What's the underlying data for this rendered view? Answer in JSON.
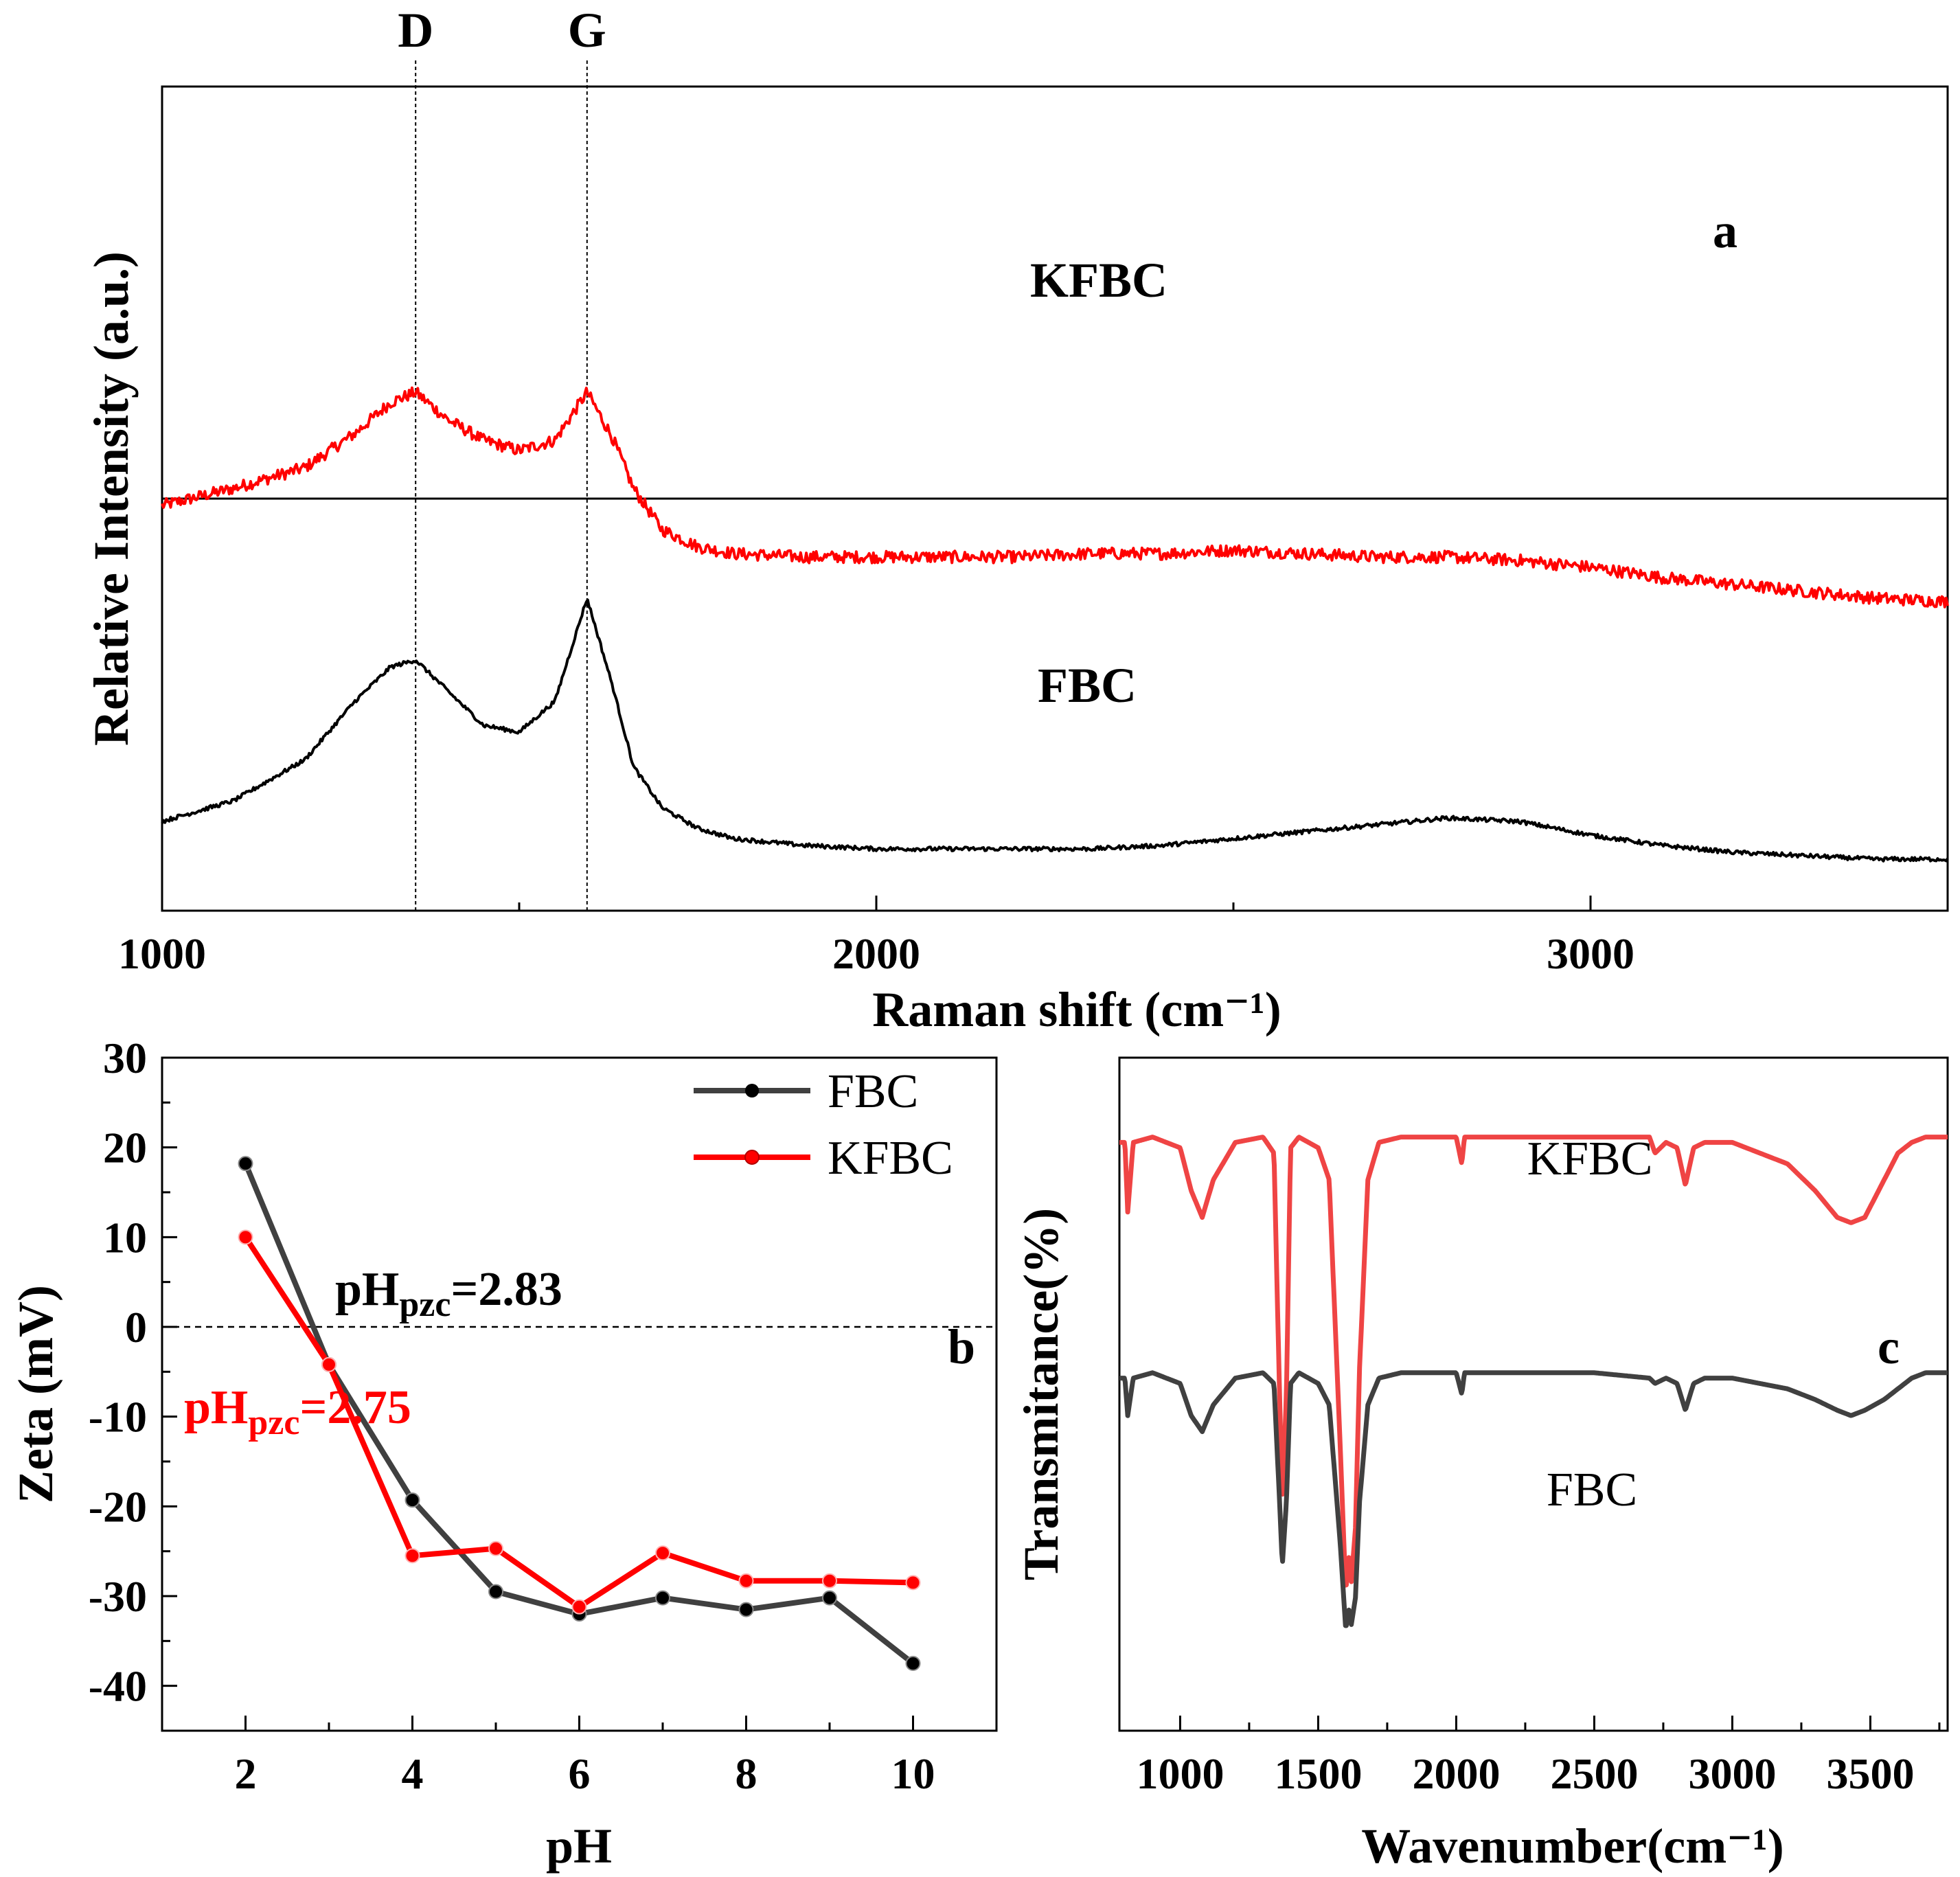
{
  "colors": {
    "fbc": "#000000",
    "kfbc": "#ff0000",
    "fbc_zeta": "#404040",
    "kfbc_zeta": "#ff0000",
    "fbc_ftir": "#404040",
    "kfbc_ftir": "#ef4444"
  },
  "chart_data": [
    {
      "id": "a",
      "type": "line",
      "title": "",
      "panel_label": "a",
      "xlabel": "Raman shift (cm⁻¹)",
      "ylabel": "Relative Intensity (a.u.)",
      "xlim": [
        1000,
        3500
      ],
      "xticks": [
        "1000",
        "2000",
        "3000"
      ],
      "xtick_values": [
        1000,
        2000,
        3000
      ],
      "minor_xticks": [
        1500,
        2500
      ],
      "peak_labels": [
        {
          "label": "D",
          "x": 1355
        },
        {
          "label": "G",
          "x": 1595
        }
      ],
      "series": [
        {
          "name": "KFBC",
          "offset": 1.0,
          "x": [
            1000,
            1100,
            1200,
            1270,
            1320,
            1355,
            1400,
            1450,
            1500,
            1550,
            1595,
            1630,
            1660,
            1700,
            1750,
            1800,
            1900,
            2000,
            2100,
            2200,
            2300,
            2400,
            2500,
            2600,
            2700,
            2800,
            2900,
            3000,
            3100,
            3200,
            3300,
            3400,
            3500
          ],
          "values": [
            0.55,
            0.6,
            0.66,
            0.76,
            0.85,
            0.88,
            0.8,
            0.74,
            0.71,
            0.74,
            0.88,
            0.75,
            0.6,
            0.48,
            0.43,
            0.41,
            0.4,
            0.4,
            0.4,
            0.4,
            0.41,
            0.41,
            0.42,
            0.41,
            0.4,
            0.4,
            0.39,
            0.37,
            0.34,
            0.32,
            0.3,
            0.28,
            0.27
          ]
        },
        {
          "name": "FBC",
          "offset": 0.0,
          "x": [
            1000,
            1100,
            1200,
            1270,
            1320,
            1355,
            1400,
            1450,
            1500,
            1550,
            1595,
            1630,
            1660,
            1700,
            1750,
            1800,
            1900,
            2000,
            2100,
            2200,
            2300,
            2400,
            2500,
            2600,
            2700,
            2800,
            2900,
            3000,
            3100,
            3200,
            3300,
            3400,
            3500
          ],
          "values": [
            0.2,
            0.26,
            0.38,
            0.55,
            0.65,
            0.67,
            0.58,
            0.48,
            0.46,
            0.55,
            0.85,
            0.6,
            0.36,
            0.24,
            0.18,
            0.15,
            0.13,
            0.12,
            0.12,
            0.12,
            0.12,
            0.13,
            0.15,
            0.17,
            0.19,
            0.21,
            0.2,
            0.16,
            0.13,
            0.11,
            0.1,
            0.09,
            0.09
          ]
        }
      ]
    },
    {
      "id": "b",
      "type": "line",
      "title": "",
      "panel_label": "b",
      "xlabel": "pH",
      "ylabel": "Zeta (mV)",
      "xlim": [
        1,
        11
      ],
      "ylim": [
        -45,
        30
      ],
      "xticks": [
        "2",
        "4",
        "6",
        "8",
        "10"
      ],
      "xtick_values": [
        2,
        4,
        6,
        8,
        10
      ],
      "yticks": [
        "30",
        "20",
        "10",
        "0",
        "-10",
        "-20",
        "-30",
        "-40"
      ],
      "ytick_values": [
        30,
        20,
        10,
        0,
        -10,
        -20,
        -30,
        -40
      ],
      "legend_position": "top-right",
      "annotations": [
        {
          "base": "pH",
          "sub": "pzc",
          "rest": "=2.83",
          "series": "FBC"
        },
        {
          "base": "pH",
          "sub": "pzc",
          "rest": "=2.75",
          "series": "KFBC"
        }
      ],
      "series": [
        {
          "name": "FBC",
          "x": [
            2,
            3,
            4,
            5,
            6,
            7,
            8,
            9,
            10
          ],
          "values": [
            18.2,
            -4.2,
            -19.3,
            -29.5,
            -32.0,
            -30.2,
            -31.5,
            -30.2,
            -37.5
          ]
        },
        {
          "name": "KFBC",
          "x": [
            2,
            3,
            4,
            5,
            6,
            7,
            8,
            9,
            10
          ],
          "values": [
            10.0,
            -4.2,
            -25.5,
            -24.7,
            -31.2,
            -25.2,
            -28.3,
            -28.3,
            -28.5
          ]
        }
      ]
    },
    {
      "id": "c",
      "type": "line",
      "title": "",
      "panel_label": "c",
      "xlabel": "Wavenumber(cm⁻¹)",
      "ylabel": "Transmitance(%)",
      "xlim": [
        780,
        3780
      ],
      "xticks": [
        "1000",
        "1500",
        "2000",
        "2500",
        "3000",
        "3500"
      ],
      "xtick_values": [
        1000,
        1500,
        2000,
        2500,
        3000,
        3500
      ],
      "series": [
        {
          "name": "KFBC",
          "x": [
            780,
            800,
            810,
            830,
            900,
            1000,
            1040,
            1080,
            1120,
            1200,
            1300,
            1340,
            1360,
            1370,
            1385,
            1400,
            1430,
            1500,
            1540,
            1580,
            1600,
            1610,
            1620,
            1635,
            1650,
            1680,
            1720,
            1800,
            2000,
            2020,
            2030,
            2040,
            2200,
            2500,
            2700,
            2720,
            2760,
            2800,
            2830,
            2860,
            2900,
            3000,
            3100,
            3200,
            3300,
            3380,
            3430,
            3480,
            3550,
            3600,
            3650,
            3700,
            3780
          ],
          "values": [
            97,
            97,
            84,
            97,
            98,
            96,
            88,
            83,
            90,
            97,
            98,
            95,
            50,
            30,
            50,
            96,
            98,
            96,
            90,
            40,
            13,
            20,
            15,
            25,
            55,
            90,
            97,
            98,
            98,
            93,
            98,
            98,
            98,
            98,
            98,
            95,
            97,
            96,
            89,
            96,
            97,
            97,
            95,
            93,
            88,
            83,
            82,
            83,
            90,
            95,
            97,
            98,
            98
          ]
        },
        {
          "name": "FBC",
          "x": [
            780,
            800,
            810,
            830,
            900,
            1000,
            1040,
            1080,
            1120,
            1200,
            1300,
            1340,
            1360,
            1370,
            1385,
            1400,
            1430,
            1500,
            1540,
            1580,
            1600,
            1610,
            1620,
            1635,
            1650,
            1680,
            1720,
            1800,
            2000,
            2020,
            2030,
            2040,
            2200,
            2500,
            2700,
            2720,
            2760,
            2800,
            2830,
            2860,
            2900,
            3000,
            3100,
            3200,
            3300,
            3380,
            3430,
            3480,
            3550,
            3600,
            3650,
            3700,
            3780
          ],
          "values": [
            53,
            53,
            46,
            53,
            54,
            52,
            46,
            43,
            48,
            53,
            54,
            52,
            30,
            18,
            30,
            52,
            54,
            52,
            48,
            22,
            6,
            10,
            7,
            12,
            30,
            48,
            53,
            54,
            54,
            50,
            54,
            54,
            54,
            54,
            53,
            52,
            53,
            52,
            47,
            52,
            53,
            53,
            52,
            51,
            49,
            47,
            46,
            47,
            49,
            51,
            53,
            54,
            54
          ]
        }
      ]
    }
  ]
}
